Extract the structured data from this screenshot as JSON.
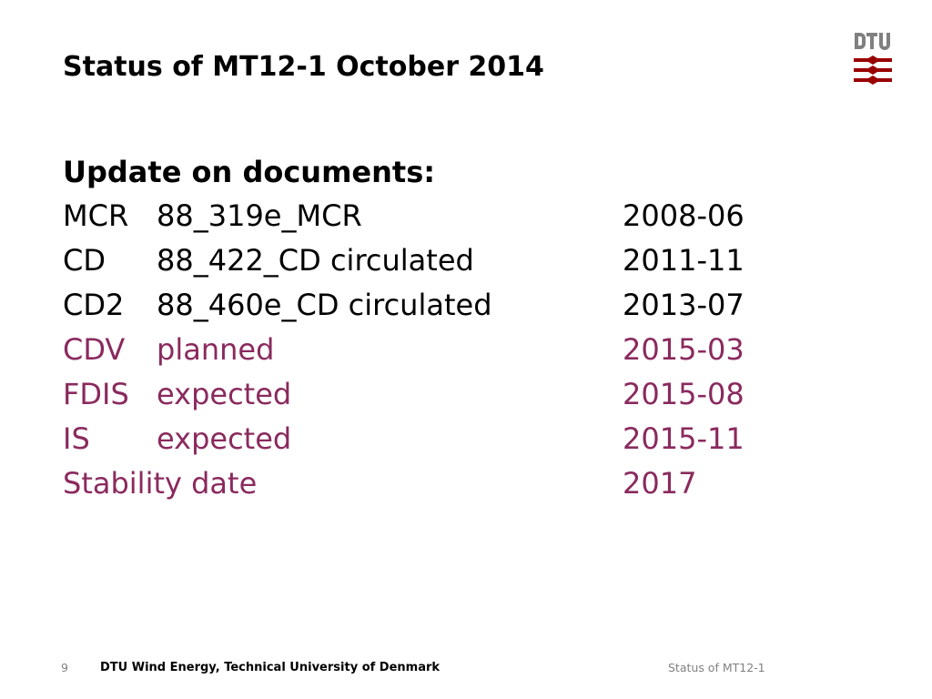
{
  "header": {
    "title": "Status of MT12-1 October 2014",
    "logo_text": "DTU",
    "logo_color": "#990000"
  },
  "main": {
    "heading": "Update on documents:",
    "rows": [
      {
        "code": "MCR",
        "description": "88_319e_MCR",
        "date": "2008-06",
        "status": "done"
      },
      {
        "code": "CD",
        "description": "88_422_CD circulated",
        "date": "2011-11",
        "status": "done"
      },
      {
        "code": "CD2",
        "description": "88_460e_CD circulated",
        "date": "2013-07",
        "status": "done"
      },
      {
        "code": "CDV",
        "description": "planned",
        "date": "2015-03",
        "status": "future"
      },
      {
        "code": "FDIS",
        "description": "expected",
        "date": "2015-08",
        "status": "future"
      },
      {
        "code": "IS",
        "description": "expected",
        "date": "2015-11",
        "status": "future"
      }
    ],
    "stability": {
      "label": "Stability date",
      "date": "2017",
      "status": "future"
    },
    "future_color": "#8a2a5e"
  },
  "footer": {
    "page_number": "9",
    "organization": "DTU Wind Energy, Technical University of Denmark",
    "topic": "Status of MT12-1"
  }
}
